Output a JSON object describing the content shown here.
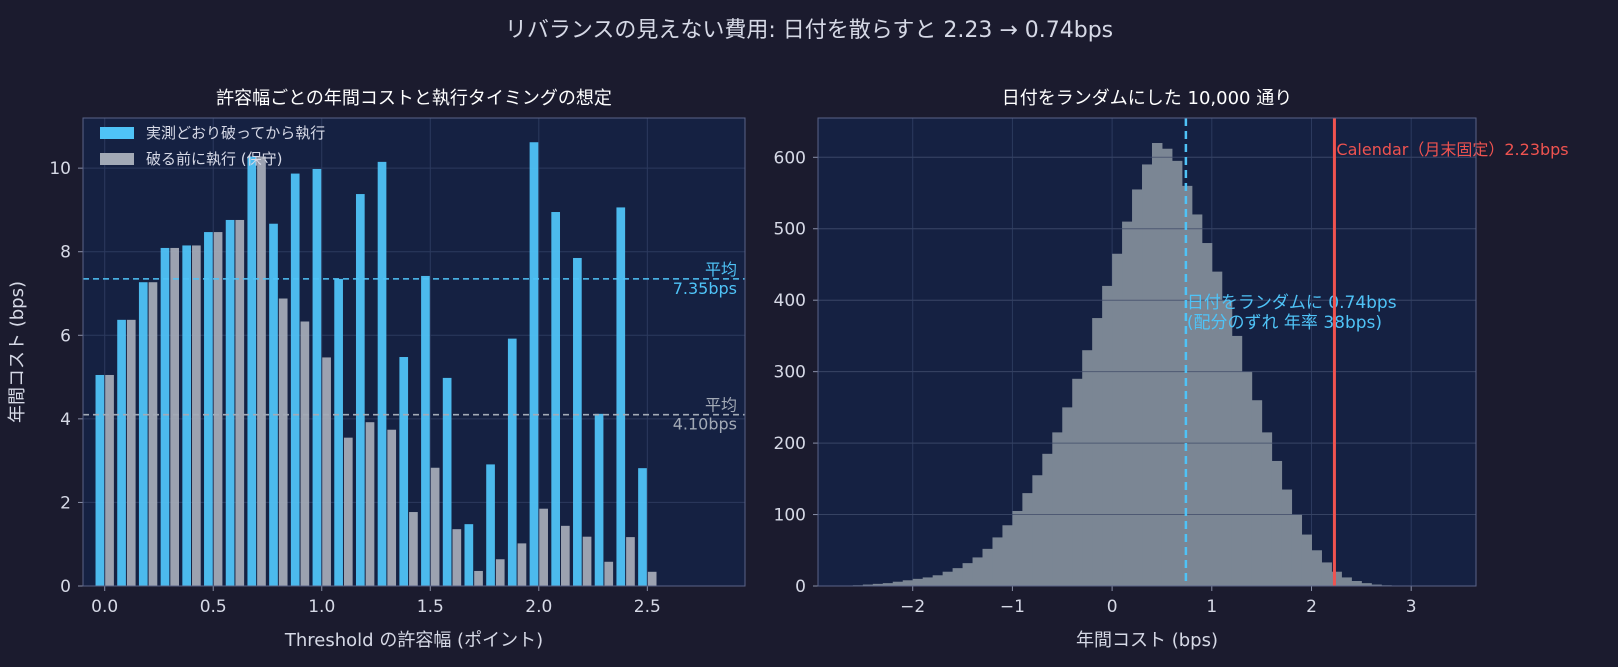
{
  "suptitle": "リバランスの見えない費用: 日付を散らすと 2.23 → 0.74bps",
  "colors": {
    "background": "#1b1b2e",
    "axes_bg": "#152142",
    "accent": "#4fc3f7",
    "gray": "#a3aab6",
    "red": "#ef5350",
    "hist": "#7b8694",
    "text": "#d6d9e6"
  },
  "chart_data": [
    {
      "type": "bar",
      "title": "許容幅ごとの年間コストと執行タイミングの想定",
      "xlabel": "Threshold の許容幅 (ポイント)",
      "ylabel": "年間コスト (bps)",
      "xlim": [
        -0.1,
        2.95
      ],
      "ylim": [
        0,
        11.2
      ],
      "xticks": [
        0.0,
        0.5,
        1.0,
        1.5,
        2.0,
        2.5
      ],
      "xtick_labels": [
        "0.0",
        "0.5",
        "1.0",
        "1.5",
        "2.0",
        "2.5"
      ],
      "yticks": [
        0,
        2,
        4,
        6,
        8,
        10
      ],
      "grid": true,
      "legend_position": "top-left",
      "x": [
        0.0,
        0.1,
        0.2,
        0.3,
        0.4,
        0.5,
        0.6,
        0.7,
        0.8,
        0.9,
        1.0,
        1.1,
        1.2,
        1.3,
        1.4,
        1.5,
        1.6,
        1.7,
        1.8,
        1.9,
        2.0,
        2.1,
        2.2,
        2.3,
        2.4,
        2.5
      ],
      "series": [
        {
          "name": "実測どおり破ってから執行",
          "color": "#4fc3f7",
          "values": [
            5.05,
            6.37,
            7.27,
            8.09,
            8.15,
            8.47,
            8.76,
            10.28,
            8.67,
            9.87,
            9.98,
            7.35,
            9.38,
            10.15,
            5.48,
            7.42,
            4.98,
            1.48,
            2.91,
            5.92,
            10.62,
            8.95,
            7.85,
            4.12,
            9.06,
            2.82
          ]
        },
        {
          "name": "破る前に執行 (保守)",
          "color": "#a3aab6",
          "values": [
            5.05,
            6.37,
            7.27,
            8.09,
            8.15,
            8.47,
            8.76,
            10.28,
            6.88,
            6.33,
            5.47,
            3.55,
            3.92,
            3.74,
            1.77,
            2.83,
            1.36,
            0.36,
            0.64,
            1.02,
            1.85,
            1.44,
            1.18,
            0.58,
            1.17,
            0.34
          ]
        }
      ],
      "hlines": [
        {
          "y": 7.35,
          "label_line1": "平均",
          "label_line2": "7.35bps",
          "color": "#4fc3f7"
        },
        {
          "y": 4.1,
          "label_line1": "平均",
          "label_line2": "4.10bps",
          "color": "#a3aab6"
        }
      ]
    },
    {
      "type": "histogram",
      "title": "日付をランダムにした 10,000 通り",
      "xlabel": "年間コスト (bps)",
      "ylabel": "",
      "xlim": [
        -2.95,
        3.65
      ],
      "ylim": [
        0,
        655
      ],
      "xticks": [
        -2,
        -1,
        0,
        1,
        2,
        3
      ],
      "xtick_labels": [
        "−2",
        "−1",
        "0",
        "1",
        "2",
        "3"
      ],
      "yticks": [
        0,
        100,
        200,
        300,
        400,
        500,
        600
      ],
      "grid": true,
      "bin_start": -2.6,
      "bin_width": 0.1,
      "counts": [
        1,
        2,
        3,
        4,
        6,
        8,
        10,
        12,
        15,
        20,
        25,
        32,
        40,
        52,
        68,
        85,
        105,
        130,
        155,
        185,
        215,
        250,
        290,
        330,
        375,
        420,
        465,
        510,
        555,
        590,
        620,
        612,
        595,
        560,
        520,
        480,
        440,
        400,
        350,
        300,
        260,
        215,
        175,
        135,
        100,
        72,
        50,
        33,
        20,
        12,
        7,
        4,
        2,
        1
      ],
      "vlines": [
        {
          "x": 0.74,
          "style": "dashed",
          "color": "#4fc3f7",
          "label_line1": "日付をランダムに 0.74bps",
          "label_line2": "(配分のずれ 年率 38bps)"
        },
        {
          "x": 2.23,
          "style": "solid",
          "color": "#ef5350",
          "label_line1": "Calendar（月末固定）2.23bps"
        }
      ]
    }
  ]
}
